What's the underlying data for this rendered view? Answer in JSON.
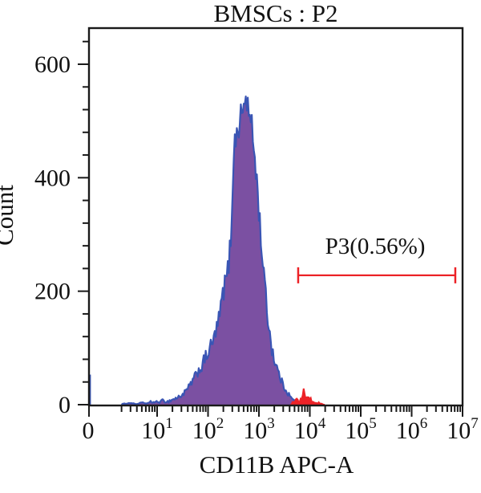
{
  "chart_data": {
    "type": "area",
    "subtype": "flow-cytometry-histogram",
    "title": "BMSCs : P2",
    "xlabel": "CD11B APC-A",
    "ylabel": "Count",
    "x_scale": "log (linear segment at 0)",
    "x_zero_label": "0",
    "x_decades": [
      1,
      2,
      3,
      4,
      5,
      6,
      7
    ],
    "xlim": [
      0,
      10000000
    ],
    "ylim": [
      0,
      660
    ],
    "y_major_ticks": [
      600,
      400,
      200,
      0
    ],
    "y_minor_step": 40,
    "grid": false,
    "legend": "none",
    "colors": {
      "fill_purple": "#7B50A2",
      "outline_blue": "#3A55B4",
      "red": "#EC2227",
      "axis": "#1a1a1a",
      "background": "#ffffff"
    },
    "series": [
      {
        "name": "P2 population (purple fill, blue outline)",
        "points": [
          [
            2,
            1
          ],
          [
            3,
            3
          ],
          [
            4,
            1
          ],
          [
            5,
            4
          ],
          [
            6,
            2
          ],
          [
            8,
            5
          ],
          [
            10,
            4
          ],
          [
            13,
            7
          ],
          [
            16,
            5
          ],
          [
            20,
            9
          ],
          [
            25,
            12
          ],
          [
            32,
            18
          ],
          [
            40,
            28
          ],
          [
            50,
            42
          ],
          [
            63,
            58
          ],
          [
            80,
            72
          ],
          [
            100,
            92
          ],
          [
            125,
            110
          ],
          [
            160,
            145
          ],
          [
            200,
            200
          ],
          [
            250,
            240
          ],
          [
            285,
            300
          ],
          [
            310,
            420
          ],
          [
            330,
            460
          ],
          [
            380,
            480
          ],
          [
            430,
            505
          ],
          [
            480,
            520
          ],
          [
            530,
            530
          ],
          [
            560,
            545
          ],
          [
            600,
            525
          ],
          [
            650,
            508
          ],
          [
            720,
            490
          ],
          [
            800,
            452
          ],
          [
            900,
            400
          ],
          [
            1000,
            342
          ],
          [
            1100,
            290
          ],
          [
            1250,
            230
          ],
          [
            1400,
            177
          ],
          [
            1600,
            130
          ],
          [
            1800,
            100
          ],
          [
            2000,
            80
          ],
          [
            2300,
            62
          ],
          [
            2600,
            48
          ],
          [
            3000,
            34
          ],
          [
            3500,
            24
          ],
          [
            4000,
            16
          ],
          [
            4500,
            10
          ],
          [
            5000,
            6
          ],
          [
            5600,
            3
          ],
          [
            6300,
            1
          ],
          [
            7000,
            0
          ]
        ]
      },
      {
        "name": "P3 events (red)",
        "points": [
          [
            4200,
            2
          ],
          [
            4800,
            5
          ],
          [
            5500,
            8
          ],
          [
            6200,
            6
          ],
          [
            7000,
            10
          ],
          [
            7600,
            26
          ],
          [
            8200,
            14
          ],
          [
            9000,
            20
          ],
          [
            9800,
            10
          ],
          [
            11000,
            7
          ],
          [
            12500,
            5
          ],
          [
            14000,
            4
          ],
          [
            16000,
            2
          ],
          [
            18000,
            1
          ],
          [
            20000,
            0
          ]
        ]
      }
    ],
    "zero_spike_count": 53,
    "peak": {
      "x_value": 560,
      "count": 545
    },
    "gate": {
      "label": "P3(0.56%)",
      "x_from": 5900,
      "x_to": 7200000,
      "y_count": 228,
      "color": "#EC2227"
    }
  }
}
